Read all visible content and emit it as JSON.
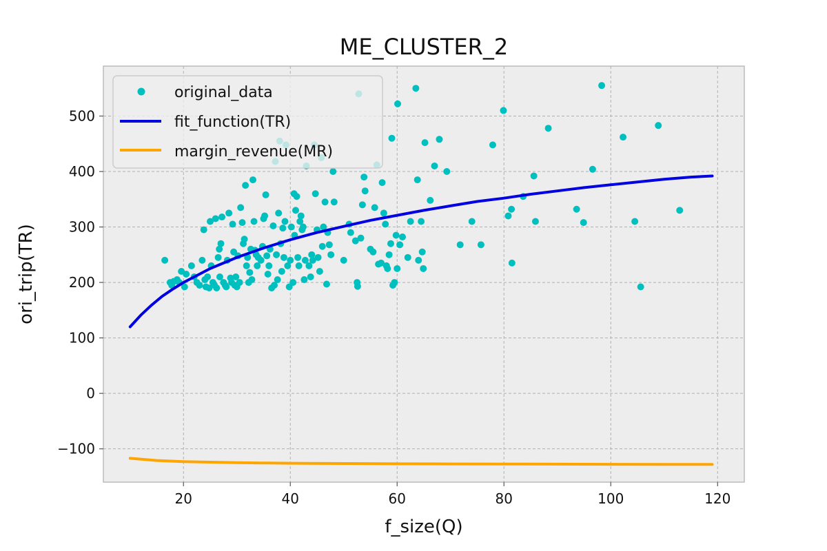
{
  "chart_data": {
    "type": "scatter",
    "title": "ME_CLUSTER_2",
    "xlabel": "f_size(Q)",
    "ylabel": "ori_trip(TR)",
    "xlim": [
      5,
      125
    ],
    "ylim": [
      -160,
      590
    ],
    "xticks": [
      20,
      40,
      60,
      80,
      100,
      120
    ],
    "yticks": [
      -100,
      0,
      100,
      200,
      300,
      400,
      500
    ],
    "grid": true,
    "legend_position": "top-left",
    "colors": {
      "original_data": "#00bfbf",
      "fit_function": "#0000e0",
      "margin_revenue": "#ffa500",
      "background": "#ededed",
      "grid": "#b0b0b0"
    },
    "series": [
      {
        "name": "original_data",
        "kind": "scatter",
        "points": [
          [
            16.5,
            240
          ],
          [
            17.5,
            200
          ],
          [
            17.8,
            195
          ],
          [
            18.2,
            202
          ],
          [
            18.8,
            205
          ],
          [
            19.2,
            200
          ],
          [
            19.6,
            220
          ],
          [
            20.2,
            192
          ],
          [
            20.5,
            215
          ],
          [
            21.5,
            230
          ],
          [
            22.0,
            210
          ],
          [
            22.5,
            200
          ],
          [
            23.0,
            195
          ],
          [
            23.5,
            240
          ],
          [
            23.8,
            295
          ],
          [
            24.0,
            205
          ],
          [
            24.2,
            192
          ],
          [
            24.5,
            210
          ],
          [
            24.8,
            190
          ],
          [
            25.0,
            310
          ],
          [
            25.2,
            230
          ],
          [
            25.5,
            200
          ],
          [
            25.8,
            195
          ],
          [
            26.0,
            315
          ],
          [
            26.2,
            190
          ],
          [
            26.5,
            245
          ],
          [
            26.7,
            260
          ],
          [
            26.8,
            210
          ],
          [
            27.0,
            270
          ],
          [
            27.2,
            318
          ],
          [
            27.5,
            200
          ],
          [
            27.8,
            195
          ],
          [
            28.0,
            192
          ],
          [
            28.2,
            240
          ],
          [
            28.5,
            325
          ],
          [
            28.8,
            208
          ],
          [
            29.0,
            200
          ],
          [
            29.2,
            305
          ],
          [
            29.4,
            255
          ],
          [
            29.6,
            195
          ],
          [
            29.8,
            210
          ],
          [
            30.0,
            192
          ],
          [
            30.2,
            248
          ],
          [
            30.5,
            200
          ],
          [
            30.7,
            335
          ],
          [
            31.0,
            308
          ],
          [
            31.2,
            270
          ],
          [
            31.4,
            278
          ],
          [
            31.6,
            375
          ],
          [
            31.8,
            230
          ],
          [
            32.0,
            245
          ],
          [
            32.2,
            200
          ],
          [
            32.4,
            218
          ],
          [
            32.6,
            260
          ],
          [
            32.8,
            205
          ],
          [
            33.0,
            385
          ],
          [
            33.2,
            310
          ],
          [
            33.4,
            258
          ],
          [
            33.6,
            250
          ],
          [
            33.8,
            230
          ],
          [
            34.0,
            245
          ],
          [
            34.5,
            240
          ],
          [
            34.8,
            265
          ],
          [
            35.0,
            315
          ],
          [
            35.2,
            320
          ],
          [
            35.4,
            358
          ],
          [
            35.6,
            248
          ],
          [
            35.8,
            215
          ],
          [
            36.0,
            230
          ],
          [
            36.2,
            260
          ],
          [
            36.5,
            190
          ],
          [
            36.8,
            302
          ],
          [
            37.0,
            195
          ],
          [
            37.2,
            418
          ],
          [
            37.4,
            250
          ],
          [
            37.6,
            205
          ],
          [
            37.8,
            325
          ],
          [
            38.0,
            455
          ],
          [
            38.2,
            270
          ],
          [
            38.4,
            220
          ],
          [
            38.6,
            298
          ],
          [
            38.8,
            245
          ],
          [
            39.0,
            310
          ],
          [
            39.2,
            448
          ],
          [
            39.5,
            230
          ],
          [
            39.8,
            192
          ],
          [
            40.0,
            240
          ],
          [
            40.2,
            300
          ],
          [
            40.5,
            200
          ],
          [
            40.7,
            360
          ],
          [
            40.8,
            285
          ],
          [
            41.0,
            330
          ],
          [
            41.2,
            355
          ],
          [
            41.4,
            245
          ],
          [
            41.6,
            230
          ],
          [
            41.8,
            310
          ],
          [
            42.0,
            320
          ],
          [
            42.2,
            295
          ],
          [
            42.4,
            300
          ],
          [
            42.6,
            205
          ],
          [
            42.8,
            240
          ],
          [
            43.0,
            410
          ],
          [
            43.5,
            230
          ],
          [
            43.8,
            210
          ],
          [
            44.0,
            250
          ],
          [
            44.2,
            240
          ],
          [
            44.5,
            448
          ],
          [
            44.7,
            360
          ],
          [
            45.0,
            295
          ],
          [
            45.2,
            245
          ],
          [
            45.5,
            220
          ],
          [
            45.8,
            425
          ],
          [
            46.0,
            265
          ],
          [
            46.2,
            300
          ],
          [
            46.5,
            345
          ],
          [
            46.8,
            197
          ],
          [
            47.0,
            290
          ],
          [
            47.3,
            268
          ],
          [
            47.6,
            250
          ],
          [
            48.0,
            400
          ],
          [
            48.2,
            345
          ],
          [
            50.0,
            240
          ],
          [
            51.0,
            305
          ],
          [
            51.3,
            290
          ],
          [
            52.2,
            275
          ],
          [
            52.5,
            200
          ],
          [
            52.6,
            193
          ],
          [
            52.8,
            540
          ],
          [
            53.2,
            280
          ],
          [
            53.5,
            340
          ],
          [
            53.8,
            390
          ],
          [
            54.0,
            365
          ],
          [
            55.0,
            260
          ],
          [
            55.5,
            255
          ],
          [
            55.8,
            335
          ],
          [
            56.2,
            412
          ],
          [
            56.5,
            233
          ],
          [
            57.0,
            235
          ],
          [
            57.2,
            380
          ],
          [
            57.5,
            325
          ],
          [
            57.8,
            305
          ],
          [
            58.0,
            230
          ],
          [
            58.2,
            225
          ],
          [
            58.5,
            250
          ],
          [
            58.8,
            270
          ],
          [
            59.0,
            460
          ],
          [
            59.2,
            195
          ],
          [
            59.5,
            200
          ],
          [
            59.8,
            285
          ],
          [
            60.0,
            225
          ],
          [
            60.1,
            522
          ],
          [
            60.5,
            268
          ],
          [
            61.0,
            282
          ],
          [
            62.0,
            245
          ],
          [
            62.5,
            310
          ],
          [
            63.5,
            550
          ],
          [
            63.8,
            385
          ],
          [
            64.0,
            240
          ],
          [
            64.5,
            310
          ],
          [
            64.7,
            255
          ],
          [
            64.9,
            225
          ],
          [
            65.2,
            452
          ],
          [
            66.2,
            348
          ],
          [
            67.0,
            410
          ],
          [
            67.9,
            458
          ],
          [
            69.3,
            400
          ],
          [
            71.8,
            268
          ],
          [
            74.0,
            310
          ],
          [
            75.7,
            268
          ],
          [
            77.9,
            448
          ],
          [
            79.9,
            510
          ],
          [
            80.8,
            320
          ],
          [
            81.4,
            332
          ],
          [
            81.5,
            235
          ],
          [
            83.6,
            355
          ],
          [
            85.6,
            392
          ],
          [
            85.9,
            310
          ],
          [
            88.3,
            478
          ],
          [
            93.6,
            332
          ],
          [
            94.9,
            308
          ],
          [
            96.6,
            404
          ],
          [
            98.3,
            555
          ],
          [
            102.3,
            462
          ],
          [
            104.5,
            310
          ],
          [
            105.6,
            192
          ],
          [
            108.9,
            483
          ],
          [
            112.9,
            330
          ]
        ]
      },
      {
        "name": "fit_function(TR)",
        "kind": "line"
      },
      {
        "name": "margin_revenue(MR)",
        "kind": "line"
      }
    ],
    "fit_curve": {
      "x": [
        10,
        12,
        14,
        16,
        18,
        20,
        25,
        30,
        35,
        40,
        45,
        50,
        55,
        60,
        65,
        70,
        75,
        80,
        85,
        90,
        95,
        100,
        105,
        110,
        115,
        119
      ],
      "y": [
        120,
        141,
        159,
        175,
        188,
        200,
        225,
        245,
        262,
        277,
        290,
        301,
        312,
        321,
        330,
        338,
        346,
        352,
        359,
        365,
        371,
        376,
        381,
        386,
        390,
        392
      ]
    },
    "margin_curve": {
      "x": [
        10,
        15,
        20,
        25,
        30,
        40,
        50,
        60,
        70,
        80,
        90,
        100,
        110,
        119
      ],
      "y": [
        -117,
        -121,
        -123,
        -124,
        -125,
        -126,
        -126.5,
        -127,
        -127.2,
        -127.4,
        -127.6,
        -127.8,
        -128,
        -128
      ]
    }
  }
}
